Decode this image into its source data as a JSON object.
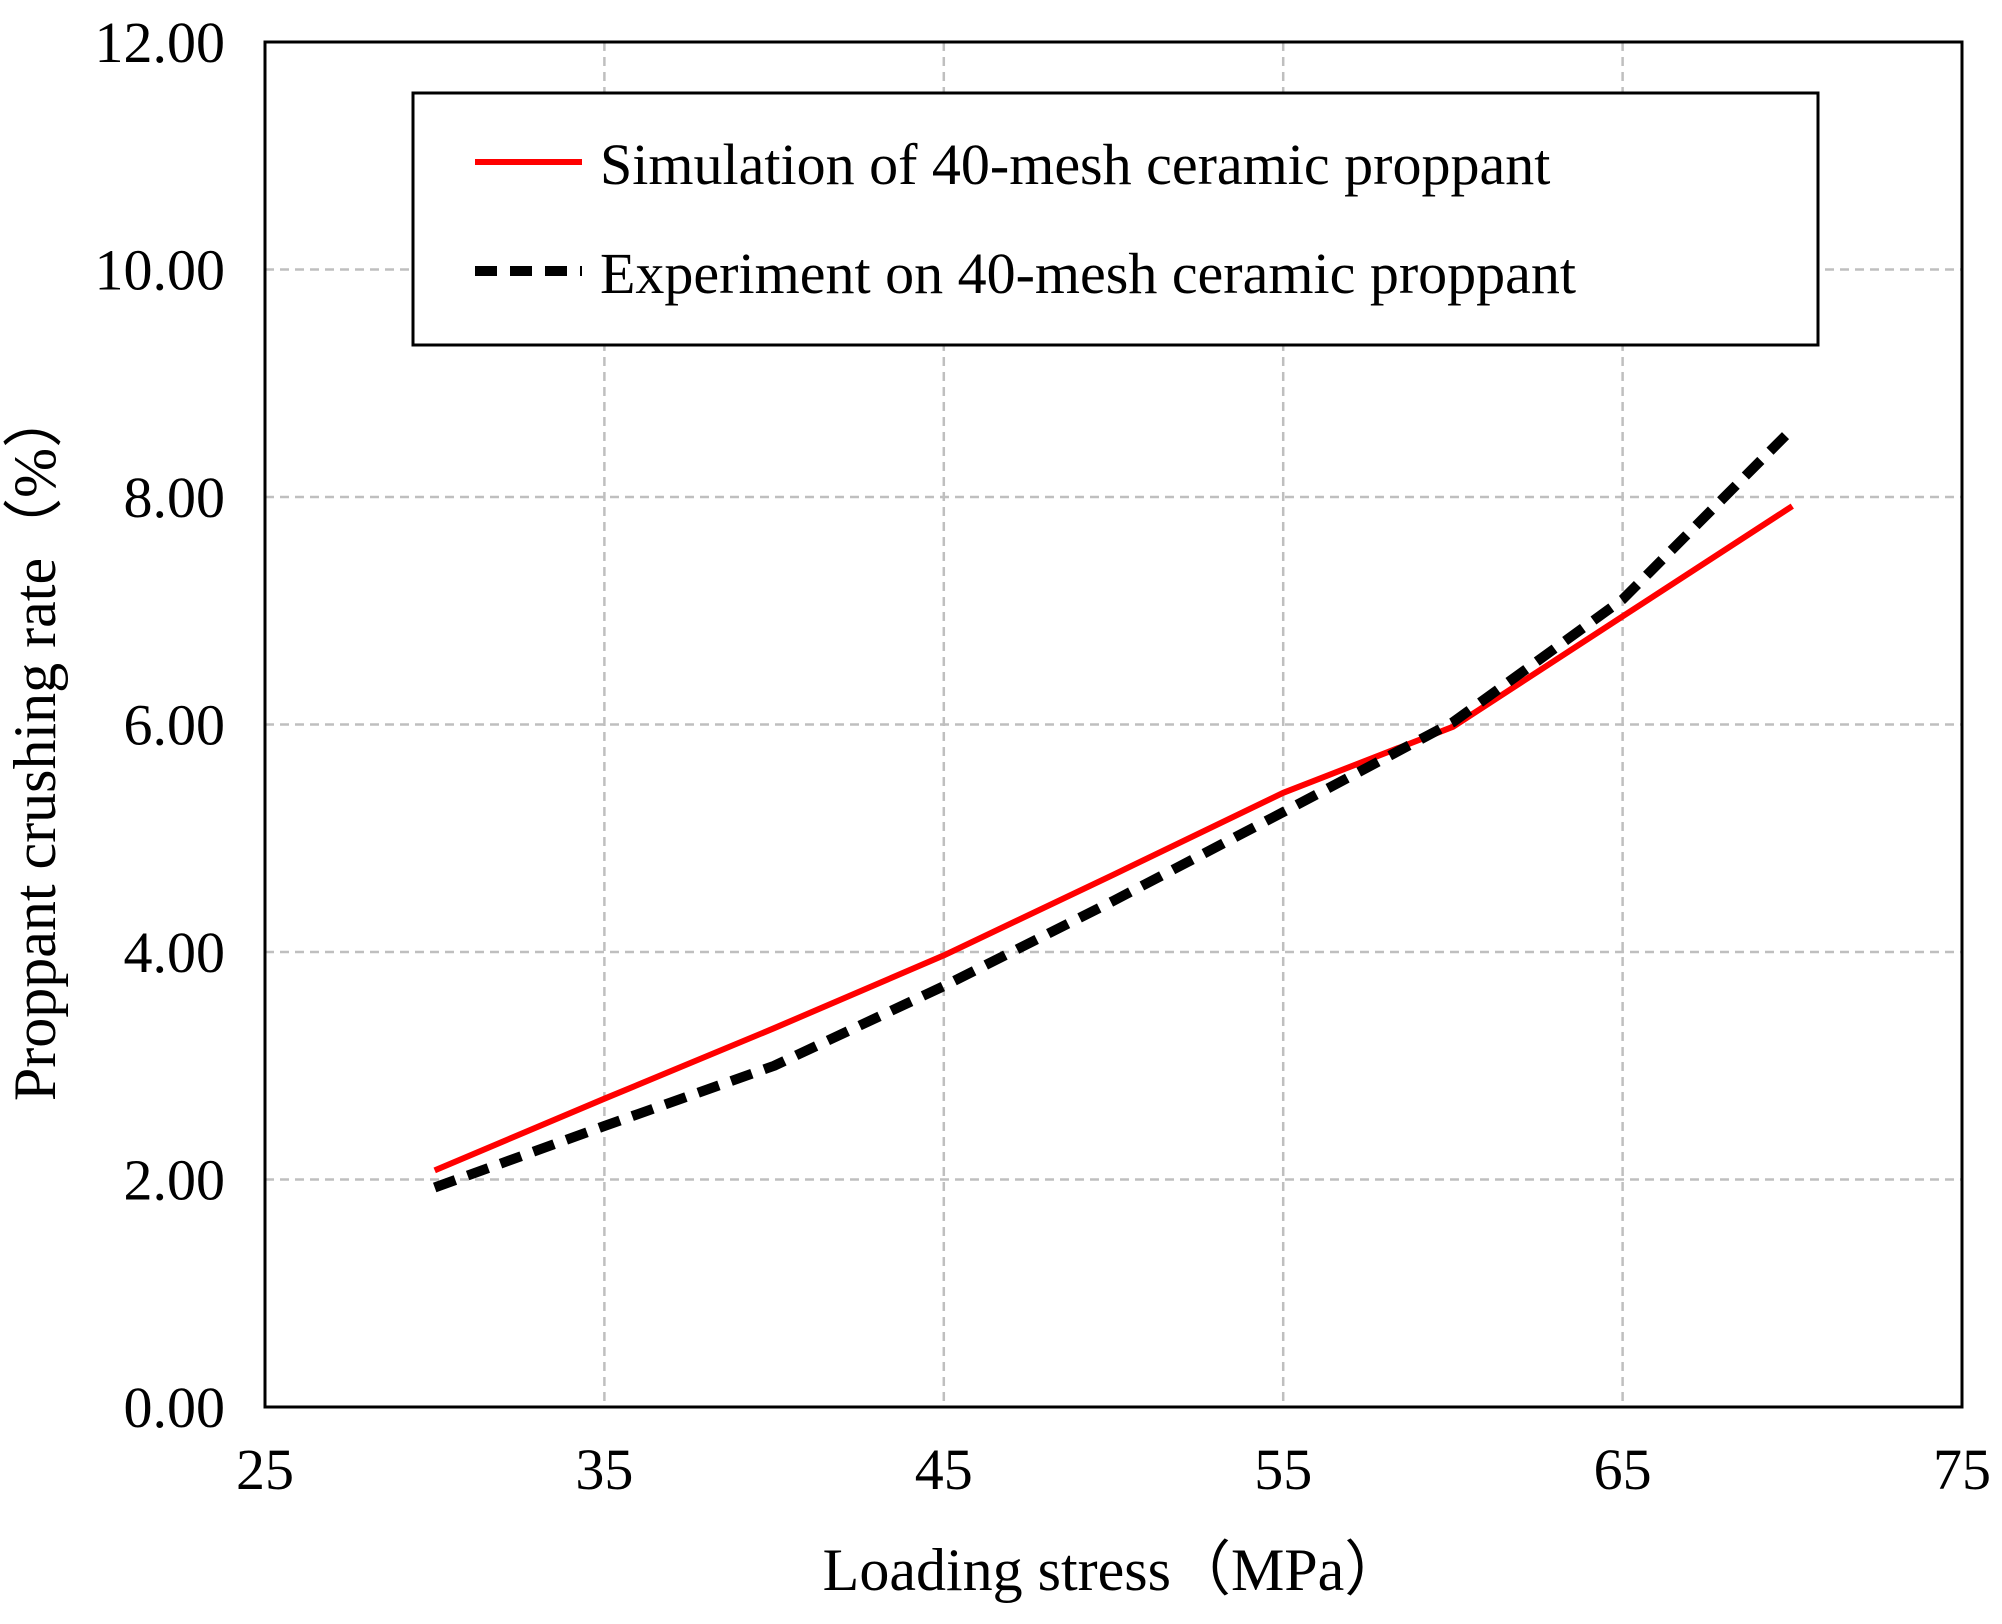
{
  "chart_data": {
    "type": "line",
    "title": "",
    "xlabel": "Loading stress（MPa）",
    "ylabel": "Proppant crushing rate（%）",
    "xlim": [
      25,
      75
    ],
    "ylim": [
      0,
      12
    ],
    "x_ticks": [
      25,
      35,
      45,
      55,
      65,
      75
    ],
    "y_ticks": [
      0,
      2,
      4,
      6,
      8,
      10,
      12
    ],
    "x_tick_labels": [
      "25",
      "35",
      "45",
      "55",
      "65",
      "75"
    ],
    "y_tick_labels": [
      "0.00",
      "2.00",
      "4.00",
      "6.00",
      "8.00",
      "10.00",
      "12.00"
    ],
    "grid": true,
    "legend_position": "top-right",
    "series": [
      {
        "name": "Simulation of 40-mesh ceramic proppant",
        "color": "#ff0000",
        "style": "solid",
        "x": [
          30,
          35,
          40,
          45,
          50,
          55,
          60,
          65,
          70
        ],
        "y": [
          2.08,
          2.71,
          3.33,
          3.97,
          4.68,
          5.4,
          5.98,
          6.95,
          7.92
        ]
      },
      {
        "name": "Experiment on 40-mesh ceramic proppant",
        "color": "#000000",
        "style": "dashed",
        "x": [
          30,
          35,
          40,
          45,
          50,
          55,
          60,
          65,
          70
        ],
        "y": [
          1.93,
          2.47,
          3.0,
          3.7,
          4.45,
          5.23,
          6.02,
          7.1,
          8.6
        ]
      }
    ]
  }
}
